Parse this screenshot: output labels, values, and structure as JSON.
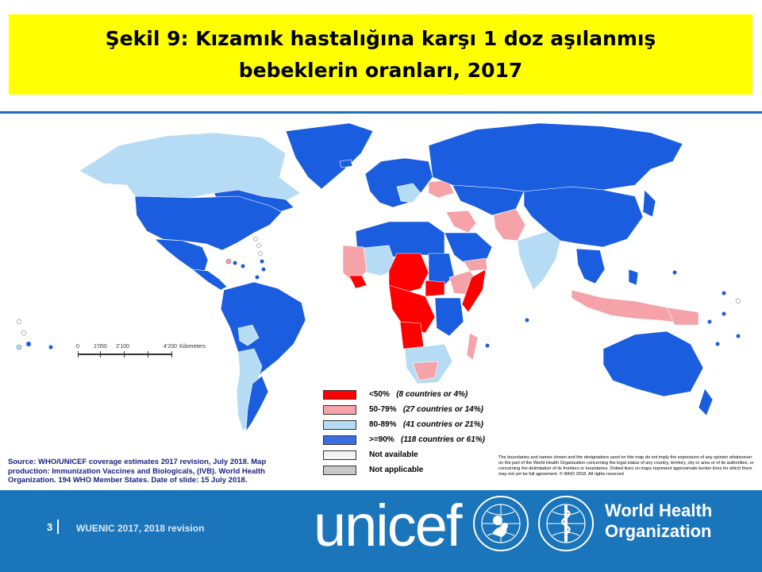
{
  "title": {
    "line1": "Şekil 9: Kızamık hastalığına karşı 1 doz aşılanmış",
    "line2": "bebeklerin oranları, 2017"
  },
  "colors": {
    "lt50": "#ff0000",
    "r50_79": "#f5a3a8",
    "r80_89": "#b5dcf4",
    "ge90": "#1b5ddf",
    "not_available": "#ffffff",
    "not_applicable": "#c8c8c8",
    "footer": "#1a75bb",
    "title_bg": "#ffff00"
  },
  "legend": [
    {
      "range": "<50%",
      "detail": "(8 countries  or 4%)",
      "color": "#ff0000"
    },
    {
      "range": "50-79%",
      "detail": "(27 countries  or 14%)",
      "color": "#f5a3a8"
    },
    {
      "range": "80-89%",
      "detail": "(41 countries  or 21%)",
      "color": "#b5dcf4"
    },
    {
      "range": ">=90%",
      "detail": "(118 countries  or 61%)",
      "color": "#3a6ee0"
    },
    {
      "range": "Not available",
      "detail": "",
      "color": "#f2f2f2"
    },
    {
      "range": "Not applicable",
      "detail": "",
      "color": "#c8c8c8"
    }
  ],
  "scale": {
    "t0": "0",
    "t1": "1'050",
    "t2": "2'100",
    "t3": "4'200",
    "unit": "Kilometers"
  },
  "source": "Source: WHO/UNICEF  coverage estimates 2017 revision, July 2018. Map production: Immunization Vaccines and Biologicals, (IVB). World Health Organization. 194 WHO Member States. Date of slide: 15 July 2018.",
  "disclaimer": "The boundaries and names shown and the designations used on this map do not imply the expression of any opinion whatsoever on the part of the World Health Organization concerning the legal status of any country, territory, city or area or of its authorities, or concerning the delimitation of its frontiers or boundaries.  Dotted lines on maps represent approximate border lines for which there may not yet be full agreement.  © WHO 2018. All rights reserved",
  "footer": {
    "slide_number": "3",
    "text": "WUENIC 2017, 2018 revision",
    "unicef_logo": "unicef",
    "who_line1": "World Health",
    "who_line2": "Organization"
  }
}
